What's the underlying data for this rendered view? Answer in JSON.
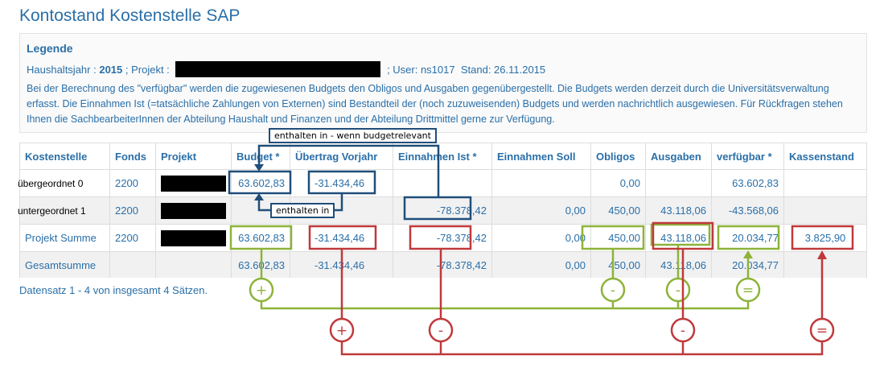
{
  "page": {
    "title": "Kontostand Kostenstelle SAP"
  },
  "legend": {
    "title": "Legende",
    "haushaltsjahr_label": "Haushaltsjahr :",
    "haushaltsjahr_value": "2015",
    "projekt_label": "; Projekt :",
    "user_text": "; User: ns1017",
    "stand_text": "Stand: 26.11.2015",
    "description": "Bei der Berechnung des \"verfügbar\" werden die zugewiesenen Budgets den Obligos und Ausgaben gegenübergestellt. Die Budgets werden derzeit durch die Universitätsverwaltung erfasst. Die Einnahmen Ist (=tatsächliche Zahlungen von Externen) sind Bestandteil der (noch zuzuweisenden) Budgets und werden nachrichtlich ausgewiesen. Für Rückfragen stehen Ihnen die SachbearbeiterInnen der Abteilung Haushalt und Finanzen und der Abteilung Drittmittel gerne zur Verfügung."
  },
  "table": {
    "headers": [
      "Kostenstelle",
      "Fonds",
      "Projekt",
      "Budget *",
      "Übertrag Vorjahr",
      "Einnahmen Ist *",
      "Einnahmen Soll",
      "Obligos",
      "Ausgaben",
      "verfügbar *",
      "Kassenstand"
    ],
    "rows": [
      {
        "kostenstelle": "übergeordnet 0",
        "fonds": "2200",
        "budget": "63.602,83",
        "uebertrag": "-31.434,46",
        "einnahmen_ist": "",
        "einnahmen_soll": "",
        "obligos": "0,00",
        "ausgaben": "",
        "verfuegbar": "63.602,83",
        "kassenstand": ""
      },
      {
        "kostenstelle": "untergeordnet 1",
        "fonds": "2200",
        "budget": "",
        "uebertrag": "",
        "einnahmen_ist": "-78.378,42",
        "einnahmen_soll": "0,00",
        "obligos": "450,00",
        "ausgaben": "43.118,06",
        "verfuegbar": "-43.568,06",
        "kassenstand": ""
      },
      {
        "kostenstelle": "Projekt Summe",
        "fonds": "2200",
        "budget": "63.602,83",
        "uebertrag": "-31.434,46",
        "einnahmen_ist": "-78.378,42",
        "einnahmen_soll": "0,00",
        "obligos": "450,00",
        "ausgaben": "43.118,06",
        "verfuegbar": "20.034,77",
        "kassenstand": "3.825,90"
      },
      {
        "kostenstelle": "Gesamtsumme",
        "fonds": "",
        "budget": "63.602,83",
        "uebertrag": "-31.434,46",
        "einnahmen_ist": "-78.378,42",
        "einnahmen_soll": "0,00",
        "obligos": "450,00",
        "ausgaben": "43.118,06",
        "verfuegbar": "20.034,77",
        "kassenstand": ""
      }
    ]
  },
  "footer": {
    "records_text": "Datensatz 1 - 4 von insgesamt 4 Sätzen."
  },
  "annotations": {
    "callout_top": "enthalten in - wenn budgetrelevant",
    "callout_mid": "enthalten in",
    "symbol_plus": "+",
    "symbol_minus": "-",
    "symbol_equals": "=",
    "color_blue": "#1f4e79",
    "color_green": "#8db33a",
    "color_red": "#c0393b"
  }
}
